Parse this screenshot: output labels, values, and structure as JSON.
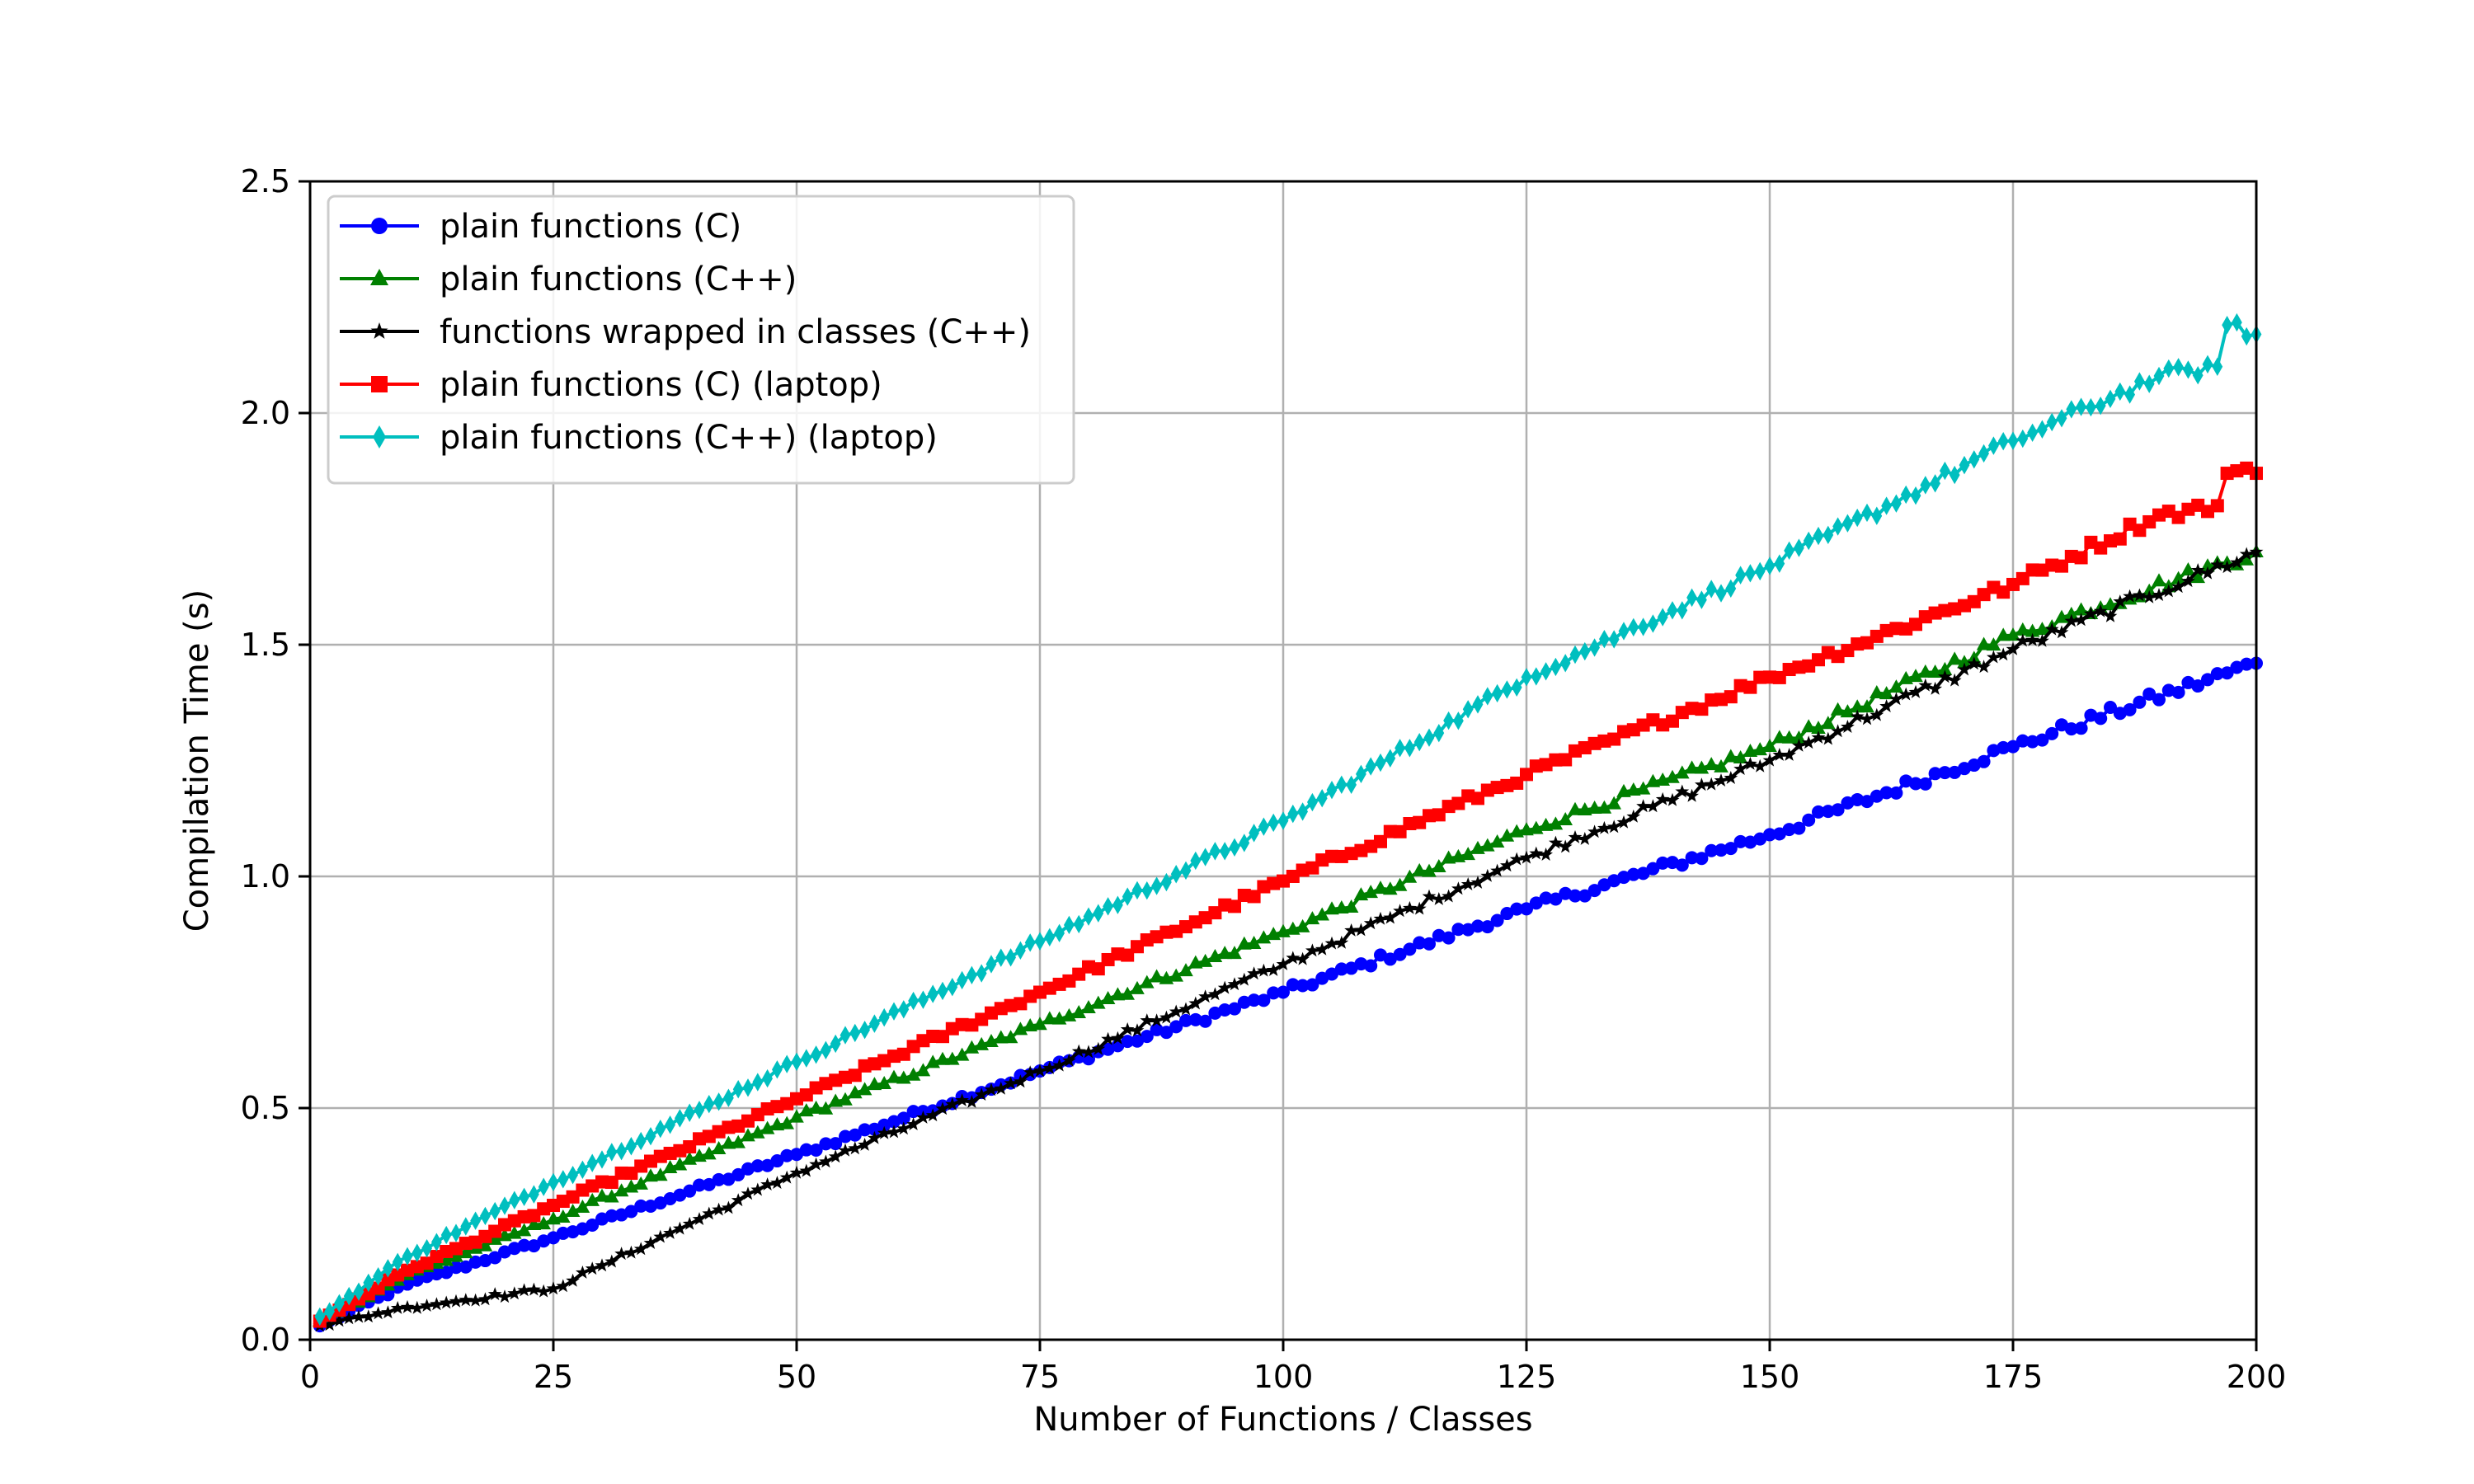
{
  "chart_data": {
    "type": "line",
    "title": "",
    "xlabel": "Number of Functions / Classes",
    "ylabel": "Compilation Time (s)",
    "xlim": [
      0,
      200
    ],
    "ylim": [
      0,
      2.5
    ],
    "xticks": [
      0,
      25,
      50,
      75,
      100,
      125,
      150,
      175,
      200
    ],
    "yticks": [
      0.0,
      0.5,
      1.0,
      1.5,
      2.0,
      2.5
    ],
    "xtick_labels": [
      "0",
      "25",
      "50",
      "75",
      "100",
      "125",
      "150",
      "175",
      "200"
    ],
    "ytick_labels": [
      "0.0",
      "0.5",
      "1.0",
      "1.5",
      "2.0",
      "2.5"
    ],
    "grid": true,
    "legend_position": "top-left",
    "x_start": 1,
    "x_end": 200,
    "series": [
      {
        "name": "plain functions (C)",
        "color": "#0000ff",
        "marker": "circle",
        "points": [
          [
            1,
            0.03
          ],
          [
            10,
            0.12
          ],
          [
            25,
            0.22
          ],
          [
            50,
            0.4
          ],
          [
            75,
            0.58
          ],
          [
            100,
            0.75
          ],
          [
            125,
            0.93
          ],
          [
            150,
            1.09
          ],
          [
            175,
            1.28
          ],
          [
            200,
            1.46
          ]
        ]
      },
      {
        "name": "plain functions (C++)",
        "color": "#008000",
        "marker": "triangle",
        "points": [
          [
            1,
            0.04
          ],
          [
            10,
            0.14
          ],
          [
            25,
            0.26
          ],
          [
            50,
            0.48
          ],
          [
            75,
            0.68
          ],
          [
            100,
            0.88
          ],
          [
            125,
            1.1
          ],
          [
            150,
            1.28
          ],
          [
            175,
            1.52
          ],
          [
            200,
            1.7
          ]
        ]
      },
      {
        "name": "functions wrapped in classes (C++)",
        "color": "#000000",
        "marker": "star",
        "points": [
          [
            1,
            0.03
          ],
          [
            10,
            0.07
          ],
          [
            25,
            0.11
          ],
          [
            30,
            0.16
          ],
          [
            40,
            0.26
          ],
          [
            50,
            0.36
          ],
          [
            75,
            0.58
          ],
          [
            100,
            0.81
          ],
          [
            125,
            1.04
          ],
          [
            150,
            1.25
          ],
          [
            175,
            1.49
          ],
          [
            200,
            1.7
          ]
        ]
      },
      {
        "name": "plain functions (C) (laptop)",
        "color": "#ff0000",
        "marker": "square",
        "points": [
          [
            1,
            0.04
          ],
          [
            10,
            0.15
          ],
          [
            25,
            0.29
          ],
          [
            50,
            0.52
          ],
          [
            75,
            0.75
          ],
          [
            100,
            0.99
          ],
          [
            125,
            1.22
          ],
          [
            150,
            1.43
          ],
          [
            175,
            1.63
          ],
          [
            190,
            1.78
          ],
          [
            196,
            1.8
          ],
          [
            197,
            1.87
          ],
          [
            200,
            1.87
          ]
        ]
      },
      {
        "name": "plain functions (C++) (laptop)",
        "color": "#00bfbf",
        "marker": "diamond",
        "points": [
          [
            1,
            0.05
          ],
          [
            10,
            0.18
          ],
          [
            25,
            0.34
          ],
          [
            50,
            0.6
          ],
          [
            75,
            0.86
          ],
          [
            100,
            1.12
          ],
          [
            125,
            1.43
          ],
          [
            150,
            1.67
          ],
          [
            175,
            1.94
          ],
          [
            190,
            2.08
          ],
          [
            196,
            2.1
          ],
          [
            197,
            2.19
          ],
          [
            200,
            2.17
          ]
        ]
      }
    ]
  }
}
